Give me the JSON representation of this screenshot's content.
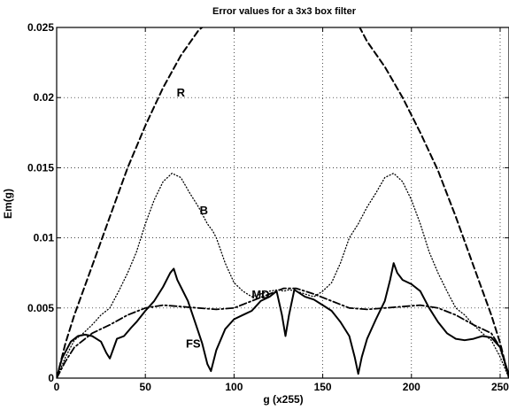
{
  "chart_data": {
    "type": "line",
    "title": "Error values for a 3x3 box filter",
    "xlabel": "g (x255)",
    "ylabel": "Em(g)",
    "xlim": [
      0,
      255
    ],
    "ylim": [
      0,
      0.025
    ],
    "xticks": [
      0,
      50,
      100,
      150,
      200,
      250
    ],
    "yticks": [
      0,
      0.005,
      0.01,
      0.015,
      0.02,
      0.025
    ],
    "xtick_labels": [
      "0",
      "50",
      "100",
      "150",
      "200",
      "250"
    ],
    "ytick_labels": [
      "0",
      "0.005",
      "0.01",
      "0.015",
      "0.02",
      "0.025"
    ],
    "grid": true,
    "legend": "inline labels",
    "series": [
      {
        "name": "R",
        "style": "dashed",
        "label_at": [
          70,
          0.0204
        ],
        "x": [
          0,
          5,
          10,
          20,
          30,
          40,
          50,
          60,
          70,
          80,
          85,
          90,
          100,
          110,
          120,
          128,
          135,
          145,
          155,
          165,
          170,
          175,
          185,
          195,
          205,
          215,
          225,
          235,
          245,
          250,
          255
        ],
        "y": [
          0,
          0.0025,
          0.0045,
          0.008,
          0.0115,
          0.015,
          0.018,
          0.0207,
          0.023,
          0.0248,
          0.0253,
          0.026,
          0.0265,
          0.0268,
          0.0269,
          0.027,
          0.0269,
          0.0268,
          0.0265,
          0.026,
          0.0252,
          0.024,
          0.0222,
          0.02,
          0.0175,
          0.0148,
          0.0115,
          0.008,
          0.0045,
          0.0025,
          0
        ]
      },
      {
        "name": "B",
        "style": "dotted",
        "label_at": [
          83,
          0.012
        ],
        "x": [
          0,
          5,
          10,
          15,
          20,
          25,
          30,
          35,
          40,
          45,
          50,
          55,
          60,
          65,
          70,
          75,
          80,
          85,
          88,
          90,
          95,
          100,
          105,
          110,
          115,
          120,
          125,
          128,
          131,
          135,
          140,
          145,
          150,
          155,
          160,
          165,
          170,
          175,
          180,
          185,
          190,
          195,
          200,
          205,
          210,
          215,
          220,
          225,
          230,
          235,
          240,
          245,
          250,
          255
        ],
        "y": [
          0,
          0.0015,
          0.0027,
          0.0032,
          0.0038,
          0.0045,
          0.005,
          0.0062,
          0.0075,
          0.009,
          0.011,
          0.0127,
          0.014,
          0.0146,
          0.0143,
          0.0132,
          0.0122,
          0.011,
          0.0105,
          0.01,
          0.0082,
          0.0068,
          0.0062,
          0.0058,
          0.006,
          0.0062,
          0.0063,
          0.0062,
          0.0063,
          0.0062,
          0.006,
          0.0058,
          0.0062,
          0.0068,
          0.0082,
          0.01,
          0.011,
          0.0122,
          0.0132,
          0.0143,
          0.0146,
          0.014,
          0.0127,
          0.011,
          0.009,
          0.0075,
          0.0062,
          0.005,
          0.0045,
          0.0038,
          0.0032,
          0.0027,
          0.0015,
          0
        ]
      },
      {
        "name": "MD",
        "style": "dash-dot",
        "label_at": [
          115,
          0.006
        ],
        "x": [
          0,
          5,
          10,
          20,
          30,
          40,
          50,
          60,
          70,
          80,
          90,
          100,
          110,
          120,
          128,
          135,
          145,
          155,
          165,
          175,
          185,
          195,
          205,
          215,
          225,
          235,
          245,
          250,
          255
        ],
        "y": [
          0,
          0.0012,
          0.0022,
          0.0032,
          0.0038,
          0.0045,
          0.005,
          0.0052,
          0.0051,
          0.005,
          0.0049,
          0.005,
          0.0055,
          0.006,
          0.0064,
          0.0064,
          0.006,
          0.0055,
          0.005,
          0.0049,
          0.005,
          0.0051,
          0.0052,
          0.005,
          0.0045,
          0.0038,
          0.0032,
          0.0022,
          0
        ]
      },
      {
        "name": "FS",
        "style": "solid",
        "label_at": [
          77,
          0.0025
        ],
        "x": [
          0,
          3,
          8,
          12,
          16,
          20,
          25,
          28,
          30,
          34,
          38,
          42,
          45,
          50,
          55,
          60,
          64,
          66,
          68,
          70,
          74,
          78,
          82,
          85,
          87,
          90,
          95,
          100,
          105,
          110,
          115,
          120,
          124,
          127,
          129,
          131,
          134,
          140,
          145,
          150,
          155,
          160,
          165,
          168,
          170,
          172,
          175,
          180,
          185,
          188,
          190,
          192,
          195,
          200,
          205,
          210,
          215,
          220,
          225,
          230,
          235,
          240,
          245,
          250,
          255
        ],
        "y": [
          0,
          0.0014,
          0.0026,
          0.003,
          0.0031,
          0.003,
          0.0026,
          0.0018,
          0.0014,
          0.0028,
          0.003,
          0.0036,
          0.004,
          0.0048,
          0.0055,
          0.0065,
          0.0075,
          0.0078,
          0.007,
          0.0065,
          0.0055,
          0.004,
          0.0025,
          0.001,
          0.0005,
          0.002,
          0.0035,
          0.0042,
          0.0045,
          0.0048,
          0.0055,
          0.0058,
          0.0062,
          0.0045,
          0.003,
          0.0045,
          0.0063,
          0.0058,
          0.0056,
          0.0052,
          0.0048,
          0.004,
          0.003,
          0.0015,
          0.0003,
          0.0015,
          0.0028,
          0.0042,
          0.0055,
          0.007,
          0.0082,
          0.0075,
          0.007,
          0.0067,
          0.0062,
          0.005,
          0.004,
          0.0032,
          0.0028,
          0.0027,
          0.0028,
          0.003,
          0.0029,
          0.0022,
          0.0002
        ]
      }
    ]
  }
}
